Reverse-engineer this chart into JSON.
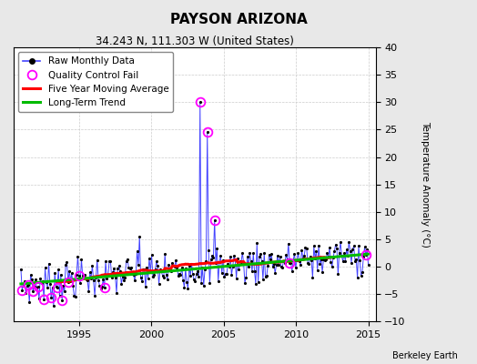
{
  "title": "PAYSON ARIZONA",
  "subtitle": "34.243 N, 111.303 W (United States)",
  "ylabel": "Temperature Anomaly (°C)",
  "credit": "Berkeley Earth",
  "xlim": [
    1990.5,
    2015.5
  ],
  "ylim": [
    -10,
    40
  ],
  "yticks": [
    -10,
    -5,
    0,
    5,
    10,
    15,
    20,
    25,
    30,
    35,
    40
  ],
  "xticks": [
    1995,
    2000,
    2005,
    2010,
    2015
  ],
  "raw_color": "#4444ff",
  "moving_avg_color": "#ff0000",
  "trend_color": "#00bb00",
  "qc_color": "#ff00ff",
  "background": "#e8e8e8",
  "plot_background": "#ffffff",
  "title_fontsize": 11,
  "subtitle_fontsize": 8.5
}
